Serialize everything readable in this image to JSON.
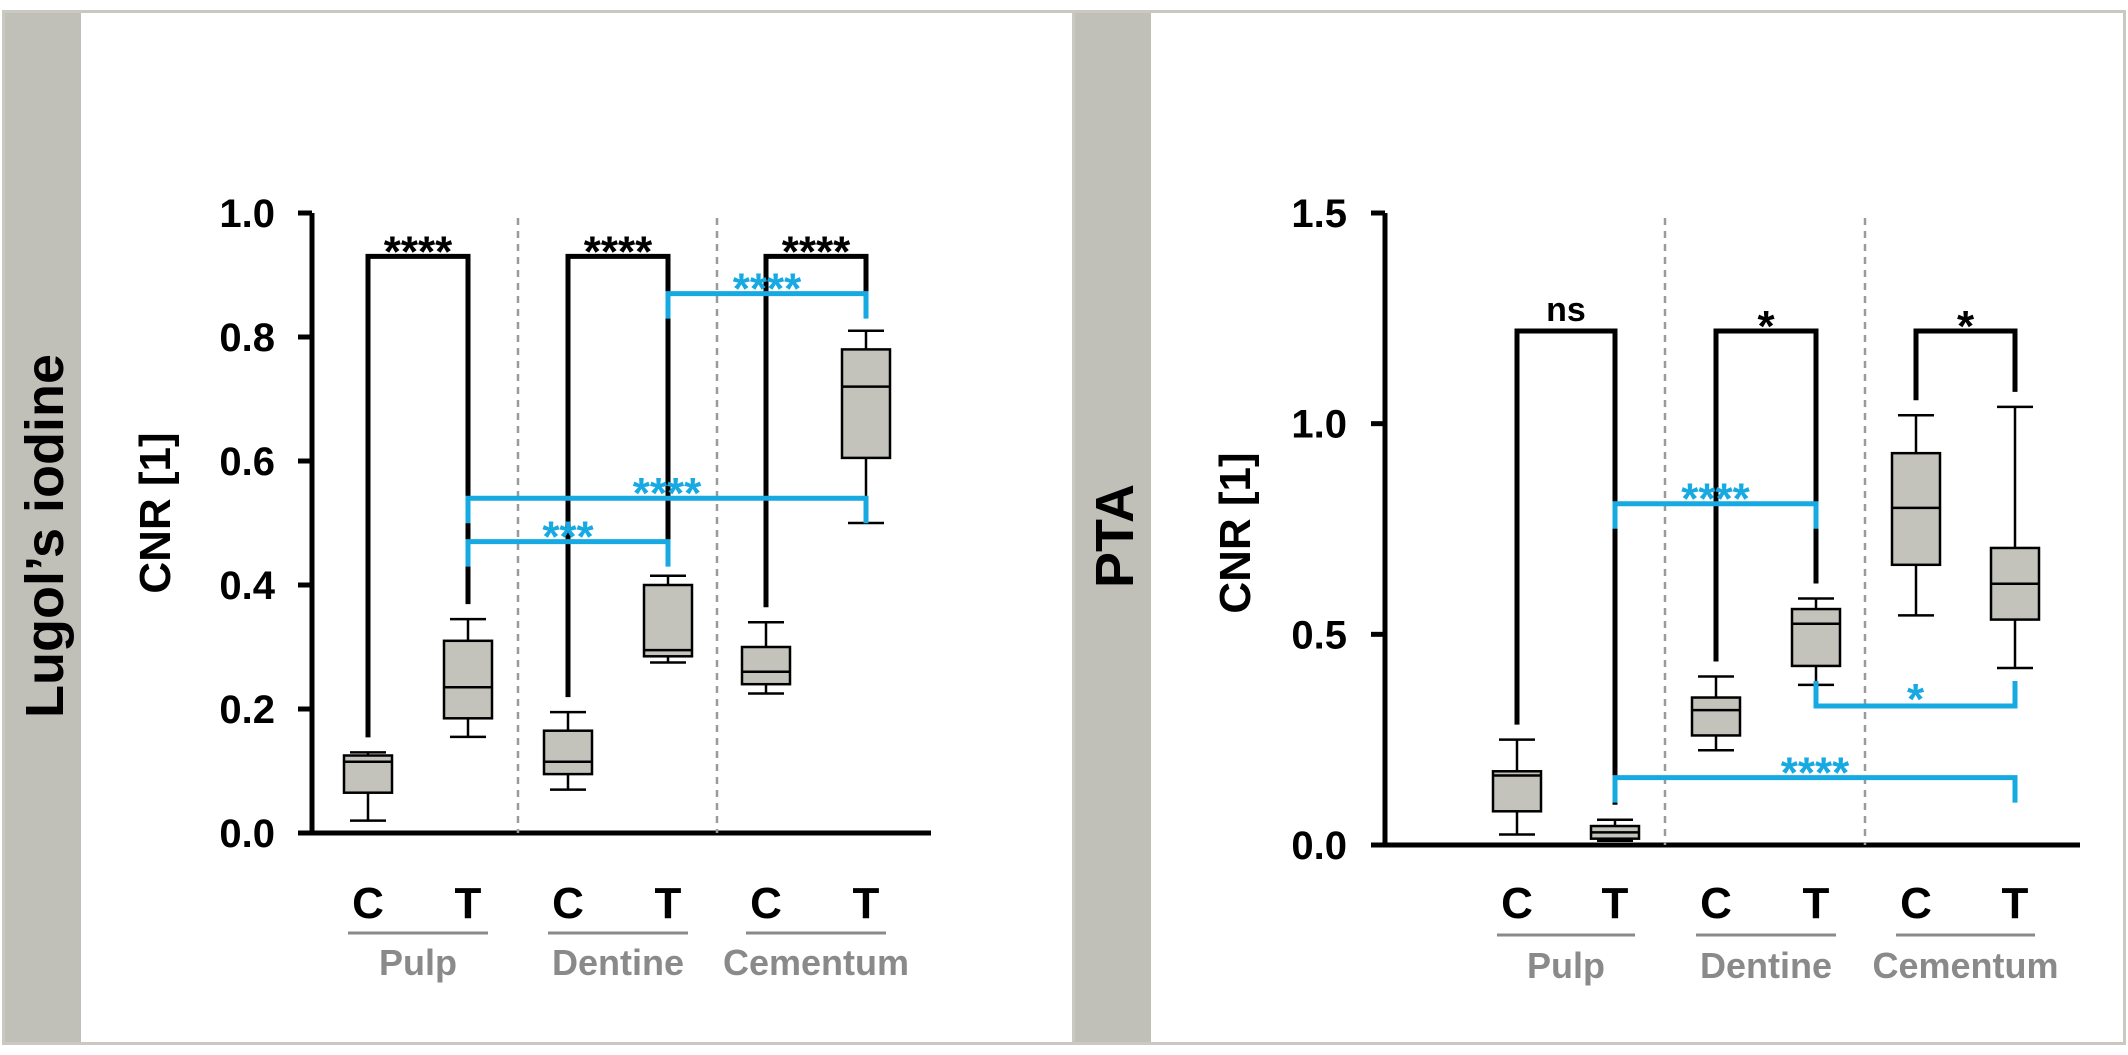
{
  "panels": [
    {
      "label": "Lugol’s iodine"
    },
    {
      "label": "PTA"
    }
  ],
  "colors": {
    "significance_between": "#17a9e1",
    "significance_within": "#000000",
    "box_fill": "#c3c3bc",
    "group_label": "#8a8a8a"
  },
  "chart_data": [
    {
      "type": "box",
      "ylabel": "CNR [1]",
      "ylim": [
        0,
        1.0
      ],
      "yticks": [
        "0.0",
        "0.2",
        "0.4",
        "0.6",
        "0.8",
        "1.0"
      ],
      "ytick_values": [
        0,
        0.2,
        0.4,
        0.6,
        0.8,
        1.0
      ],
      "categories": [
        "C",
        "T",
        "C",
        "T",
        "C",
        "T"
      ],
      "groups": [
        "Pulp",
        "Dentine",
        "Cementum"
      ],
      "boxes": [
        {
          "min": 0.02,
          "q1": 0.065,
          "median": 0.115,
          "q3": 0.125,
          "max": 0.13
        },
        {
          "min": 0.155,
          "q1": 0.185,
          "median": 0.235,
          "q3": 0.31,
          "max": 0.345
        },
        {
          "min": 0.07,
          "q1": 0.095,
          "median": 0.115,
          "q3": 0.165,
          "max": 0.195
        },
        {
          "min": 0.275,
          "q1": 0.285,
          "median": 0.295,
          "q3": 0.4,
          "max": 0.415
        },
        {
          "min": 0.225,
          "q1": 0.24,
          "median": 0.26,
          "q3": 0.3,
          "max": 0.34
        },
        {
          "min": 0.5,
          "q1": 0.605,
          "median": 0.72,
          "q3": 0.78,
          "max": 0.81
        }
      ],
      "comparisons": [
        {
          "from": 0,
          "to": 1,
          "level": 0.93,
          "label": "****",
          "kind": "within"
        },
        {
          "from": 2,
          "to": 3,
          "level": 0.93,
          "label": "****",
          "kind": "within"
        },
        {
          "from": 4,
          "to": 5,
          "level": 0.93,
          "label": "****",
          "kind": "within"
        },
        {
          "from": 3,
          "to": 5,
          "level": 0.87,
          "label": "****",
          "kind": "between"
        },
        {
          "from": 1,
          "to": 5,
          "level": 0.54,
          "label": "****",
          "kind": "between"
        },
        {
          "from": 1,
          "to": 3,
          "level": 0.47,
          "label": "***",
          "kind": "between"
        }
      ]
    },
    {
      "type": "box",
      "ylabel": "CNR [1]",
      "ylim": [
        0,
        1.5
      ],
      "yticks": [
        "0.0",
        "0.5",
        "1.0",
        "1.5"
      ],
      "ytick_values": [
        0,
        0.5,
        1.0,
        1.5
      ],
      "categories": [
        "C",
        "T",
        "C",
        "T",
        "C",
        "T"
      ],
      "groups": [
        "Pulp",
        "Dentine",
        "Cementum"
      ],
      "boxes": [
        {
          "min": 0.025,
          "q1": 0.08,
          "median": 0.165,
          "q3": 0.175,
          "max": 0.25
        },
        {
          "min": 0.01,
          "q1": 0.015,
          "median": 0.03,
          "q3": 0.045,
          "max": 0.06
        },
        {
          "min": 0.225,
          "q1": 0.26,
          "median": 0.32,
          "q3": 0.35,
          "max": 0.4
        },
        {
          "min": 0.38,
          "q1": 0.425,
          "median": 0.525,
          "q3": 0.56,
          "max": 0.585
        },
        {
          "min": 0.545,
          "q1": 0.665,
          "median": 0.8,
          "q3": 0.93,
          "max": 1.02
        },
        {
          "min": 0.42,
          "q1": 0.535,
          "median": 0.62,
          "q3": 0.705,
          "max": 1.04
        }
      ],
      "comparisons": [
        {
          "from": 0,
          "to": 1,
          "level": 1.22,
          "label": "ns",
          "kind": "within"
        },
        {
          "from": 2,
          "to": 3,
          "level": 1.22,
          "label": "*",
          "kind": "within"
        },
        {
          "from": 4,
          "to": 5,
          "level": 1.22,
          "label": "*",
          "kind": "within"
        },
        {
          "from": 1,
          "to": 3,
          "level": 0.81,
          "label": "****",
          "kind": "between"
        },
        {
          "from": 3,
          "to": 5,
          "level": 0.33,
          "label": "*",
          "kind": "between",
          "down": true
        },
        {
          "from": 1,
          "to": 5,
          "level": 0.16,
          "label": "****",
          "kind": "between"
        }
      ]
    }
  ]
}
